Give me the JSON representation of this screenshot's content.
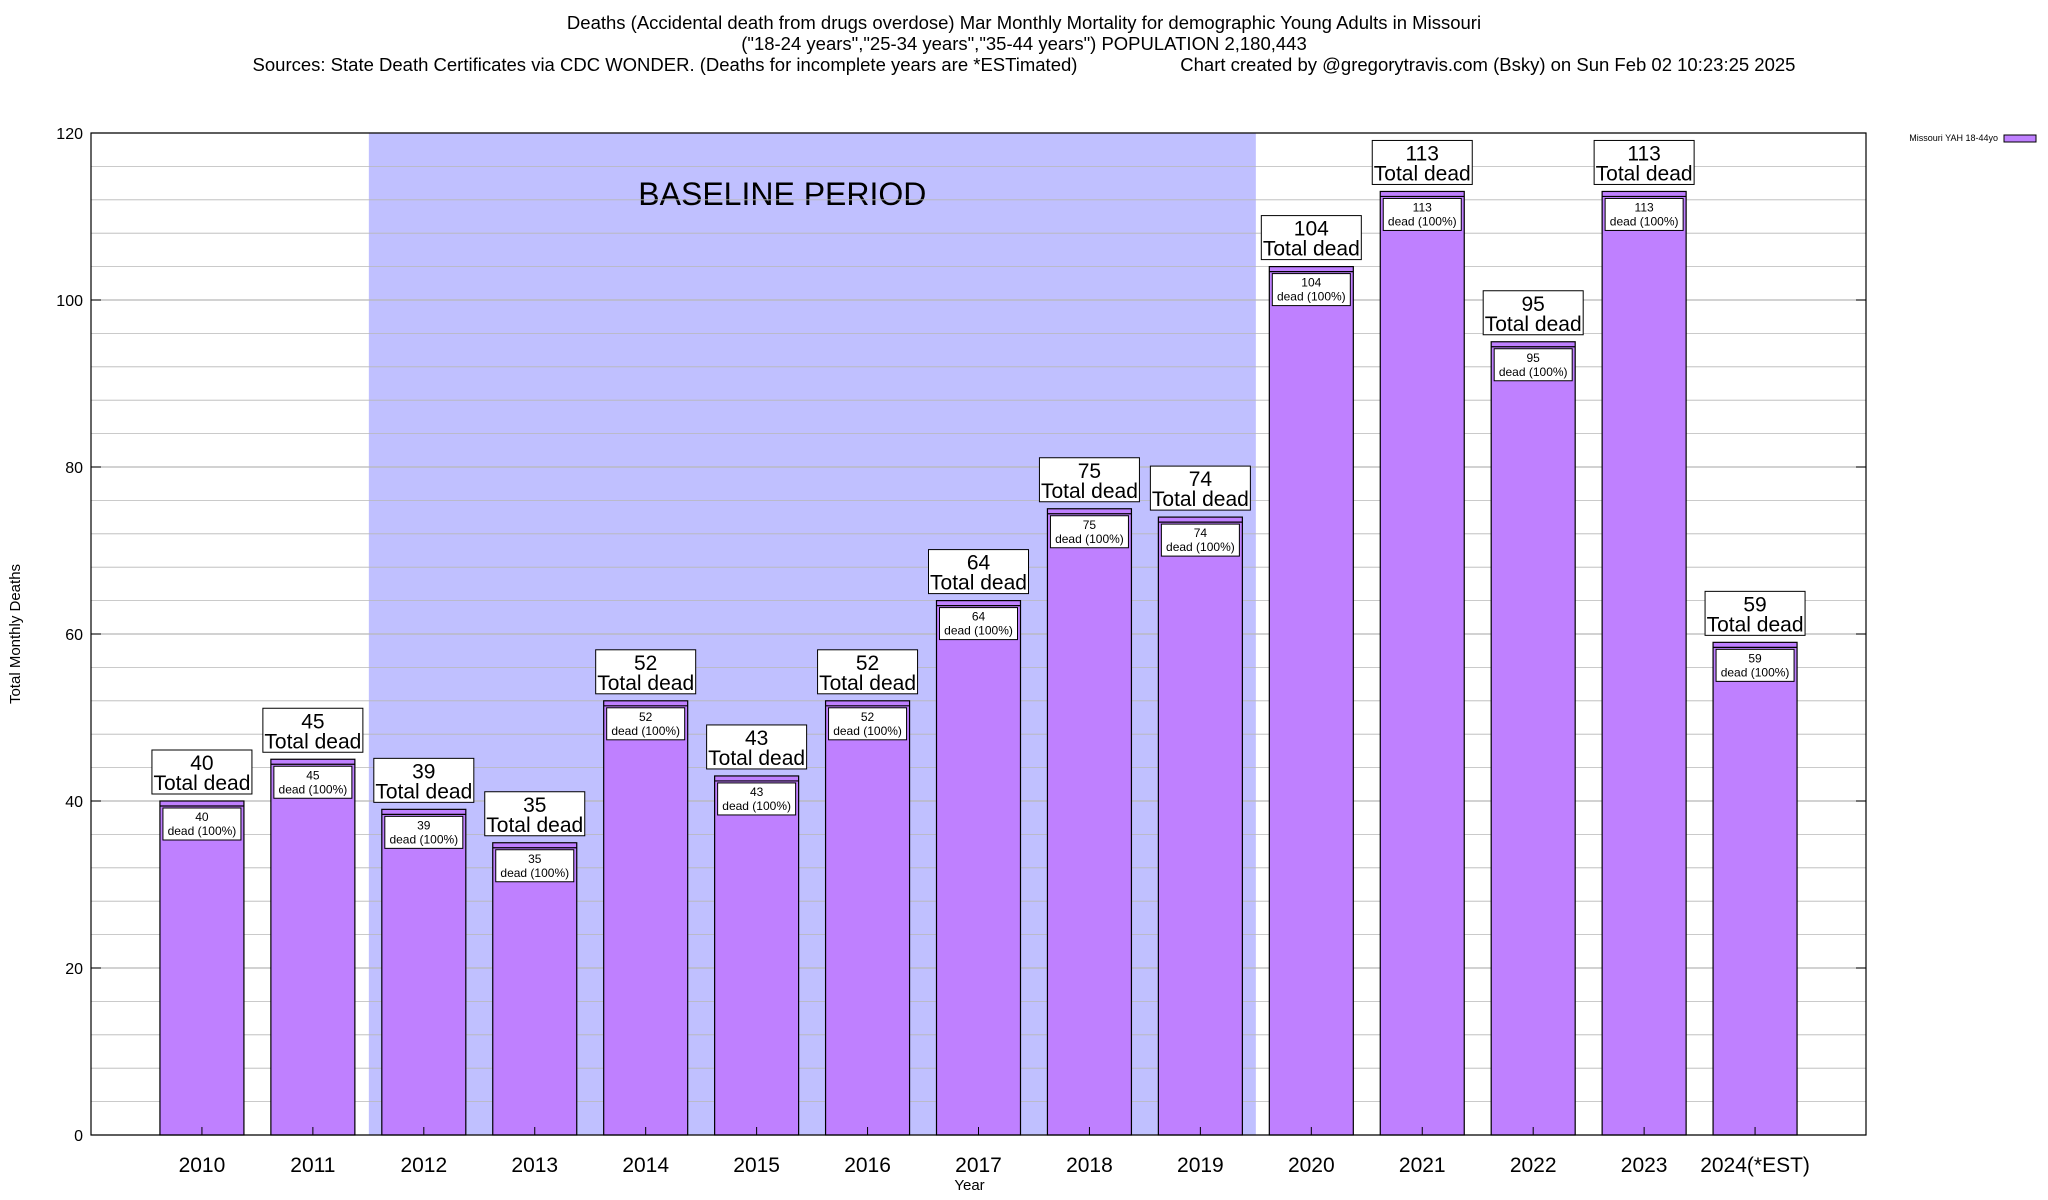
{
  "chart_data": {
    "type": "bar",
    "title": "Deaths (Accidental death from drugs overdose) Mar Monthly Mortality for demographic Young Adults in Missouri",
    "subtitle": "(\"18-24 years\",\"25-34 years\",\"35-44 years\") POPULATION 2,180,443",
    "source": "Sources: State Death Certificates via CDC WONDER. (Deaths for incomplete years are *ESTimated)",
    "credit": "Chart created by @gregorytravis.com (Bsky) on Sun Feb 02 10:23:25 2025",
    "xlabel": "Year",
    "ylabel": "Total Monthly Deaths",
    "ylim": [
      0,
      120
    ],
    "yticks": [
      0,
      20,
      40,
      60,
      80,
      100,
      120
    ],
    "grid": true,
    "legend_position": "top-right",
    "series": [
      {
        "name": "Missouri YAH 18-44yo",
        "color": "#bf80ff",
        "values": [
          40,
          45,
          39,
          35,
          52,
          43,
          52,
          64,
          75,
          74,
          104,
          113,
          95,
          113,
          59
        ]
      }
    ],
    "categories": [
      "2010",
      "2011",
      "2012",
      "2013",
      "2014",
      "2015",
      "2016",
      "2017",
      "2018",
      "2019",
      "2020",
      "2021",
      "2022",
      "2023",
      "2024(*EST)"
    ],
    "baseline": {
      "label": "BASELINE PERIOD",
      "from": "2012",
      "to": "2019",
      "color": "#c0c0ff"
    },
    "label_total": "Total dead",
    "label_inner": "dead (100%)"
  }
}
